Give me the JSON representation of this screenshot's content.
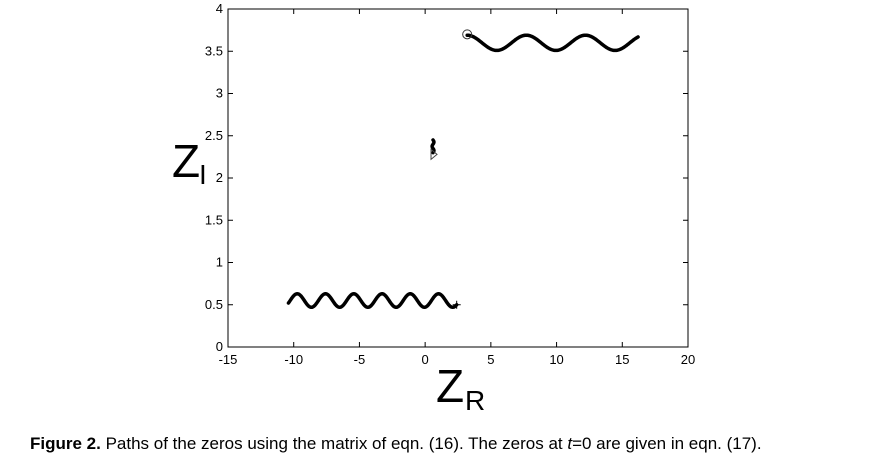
{
  "chart_data": {
    "type": "line",
    "title": "",
    "xlabel": "Z",
    "xlabel_sub": "R",
    "ylabel": "Z",
    "ylabel_sub": "I",
    "xlim": [
      -15,
      20
    ],
    "ylim": [
      0,
      4
    ],
    "xticks": [
      -15,
      -10,
      -5,
      0,
      5,
      10,
      15,
      20
    ],
    "yticks": [
      0,
      0.5,
      1,
      1.5,
      2,
      2.5,
      3,
      3.5,
      4
    ],
    "xtick_labels": [
      "-15",
      "-10",
      "-5",
      "0",
      "5",
      "10",
      "15",
      "20"
    ],
    "ytick_labels": [
      "0",
      "0.5",
      "1",
      "1.5",
      "2",
      "2.5",
      "3",
      "3.5",
      "4"
    ],
    "grid": false,
    "series": [
      {
        "start_marker": "circle",
        "start": [
          3.2,
          3.7
        ],
        "x_range": [
          3.2,
          16.2
        ],
        "y_center": 3.6,
        "amplitude": 0.09,
        "wavelength": 4.5
      },
      {
        "start_marker": "plus",
        "start": [
          2.4,
          0.5
        ],
        "x_range": [
          -10.4,
          2.4
        ],
        "y_center": 0.55,
        "amplitude": 0.08,
        "wavelength": 2.15
      },
      {
        "start_marker": "triangle",
        "start": [
          0.6,
          2.28
        ],
        "x_range": [
          0.45,
          0.75
        ],
        "y_range": [
          2.3,
          2.45
        ]
      }
    ]
  },
  "caption": {
    "label": "Figure 2.",
    "text_before": " Paths of the zeros using the matrix of eqn. (16). The zeros at ",
    "var": "t",
    "text_after": "=0 are given in eqn. (17)."
  }
}
